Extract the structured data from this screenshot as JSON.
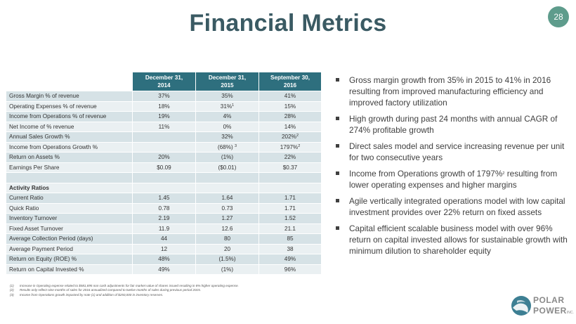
{
  "title": "Financial Metrics",
  "page_number": "28",
  "table": {
    "headers": [
      {
        "line1": "December 31,",
        "line2": "2014"
      },
      {
        "line1": "December 31,",
        "line2": "2015"
      },
      {
        "line1": "September 30,",
        "line2": "2016"
      }
    ],
    "metrics": [
      {
        "label": "Gross Margin % of revenue",
        "v1": "37%",
        "v2": "35%",
        "v3": "41%"
      },
      {
        "label": "Operating Expenses % of revenue",
        "v1": "18%",
        "v2": "31%",
        "v2_sup": "1",
        "v3": "15%"
      },
      {
        "label": "Income from Operations % of revenue",
        "v1": "19%",
        "v2": "4%",
        "v3": "28%"
      },
      {
        "label": "Net Income of % revenue",
        "v1": "11%",
        "v2": "0%",
        "v3": "14%"
      },
      {
        "label": "Annual Sales Growth %",
        "v1": "",
        "v2": "32%",
        "v3": "202%",
        "v3_sup": "2"
      },
      {
        "label": "Income from Operations Growth %",
        "v1": "",
        "v2": "(68%) ",
        "v2_sup": "3",
        "v3": "1797%",
        "v3_sup": "2"
      },
      {
        "label": "Return on Assets %",
        "v1": "20%",
        "v2": "(1%)",
        "v3": "22%"
      },
      {
        "label": "Earnings Per Share",
        "v1": "$0.09",
        "v2": "($0.01)",
        "v3": "$0.37"
      }
    ],
    "activity_section_label": "Activity Ratios",
    "activity": [
      {
        "label": "Current Ratio",
        "v1": "1.45",
        "v2": "1.64",
        "v3": "1.71"
      },
      {
        "label": "Quick Ratio",
        "v1": "0.78",
        "v2": "0.73",
        "v3": "1.71"
      },
      {
        "label": "Inventory Turnover",
        "v1": "2.19",
        "v2": "1.27",
        "v3": "1.52"
      },
      {
        "label": "Fixed Asset Turnover",
        "v1": "11.9",
        "v2": "12.6",
        "v3": "21.1"
      },
      {
        "label": "Average Collection Period (days)",
        "v1": "44",
        "v2": "80",
        "v3": "85"
      },
      {
        "label": "Average Payment Period",
        "v1": "12",
        "v2": "20",
        "v3": "38"
      },
      {
        "label": "Return on Equity (ROE) %",
        "v1": "48%",
        "v2": "(1.5%)",
        "v3": "49%"
      },
      {
        "label": "Return on Capital Invested %",
        "v1": "49%",
        "v2": "(1%)",
        "v3": "96%"
      }
    ]
  },
  "bullets": [
    "Gross margin growth from 35% in 2015 to 41% in 2016 resulting from improved manufacturing efficiency and improved factory utilization",
    "High growth during past 24 months with annual CAGR of 274% profitable growth",
    "Direct sales model and service increasing revenue per unit for two consecutive years",
    {
      "before": "Income from Operations growth of 1797%",
      "sup": "2",
      "after": " resulting from lower operating expenses and higher margins"
    },
    "Agile vertically integrated operations model with low capital investment provides over 22% return on fixed assets",
    "Capital efficient scalable business model with over 96% return on capital invested allows for sustainable growth with minimum dilution to shareholder equity"
  ],
  "footnotes": [
    {
      "num": "(1)",
      "text": "Increase in Operating expense related to $581,895 non cash adjustments for fair market value of shares issued resulting in 8% higher operating expense."
    },
    {
      "num": "(2)",
      "text": "Results only reflect nine months of sales for 2016 annualized compared to twelve months of sales during previous period 2015."
    },
    {
      "num": "(3)",
      "text": "Income from Operations growth impacted by note (1) and addition of $250,000 in inventory reserves."
    }
  ],
  "logo": {
    "line1": "POLAR",
    "line2": "POWER",
    "suffix": "INC."
  },
  "colors": {
    "title": "#3a5a63",
    "header_bg": "#2e6f7e",
    "row_dark": "#d6e2e6",
    "row_light": "#eaf0f2",
    "badge": "#5e9c8c"
  }
}
